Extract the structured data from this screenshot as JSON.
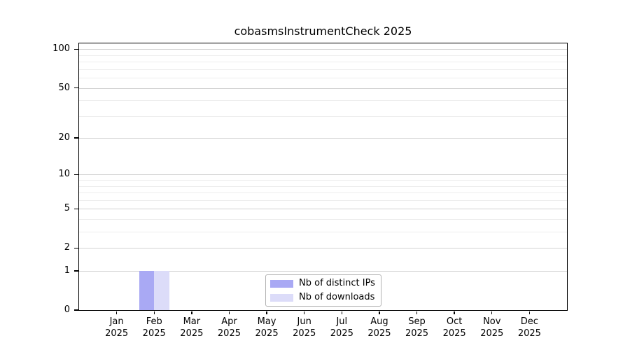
{
  "chart_data": {
    "type": "bar",
    "title": "cobasmsInstrumentCheck 2025",
    "categories": [
      "Jan",
      "Feb",
      "Mar",
      "Apr",
      "May",
      "Jun",
      "Jul",
      "Aug",
      "Sep",
      "Oct",
      "Nov",
      "Dec"
    ],
    "x_tick_year": "2025",
    "series": [
      {
        "name": "Nb of distinct IPs",
        "color": "#a9a9f4",
        "values": [
          0,
          1,
          0,
          0,
          0,
          0,
          0,
          0,
          0,
          0,
          0,
          0
        ]
      },
      {
        "name": "Nb of downloads",
        "color": "#dcdcf9",
        "values": [
          0,
          1,
          0,
          0,
          0,
          0,
          0,
          0,
          0,
          0,
          0,
          0
        ]
      }
    ],
    "y_scale": "log1p",
    "ylim": [
      0,
      111
    ],
    "y_major_ticks": [
      0,
      1,
      2,
      5,
      10,
      20,
      50,
      100
    ],
    "y_minor_ticks": [
      3,
      4,
      6,
      7,
      8,
      9,
      30,
      40,
      60,
      70,
      80,
      90
    ],
    "grid": "horizontal-only",
    "legend": {
      "position": "bottom-center",
      "entries": [
        "Nb of distinct IPs",
        "Nb of downloads"
      ]
    },
    "colors": {
      "axis": "#000000",
      "grid_major": "#d2d2d2",
      "grid_minor": "#ededed",
      "background": "#ffffff",
      "legend_border": "#b2b2b2",
      "bar_distinct_ips": "#a9a9f4",
      "bar_downloads": "#dcdcf9"
    }
  }
}
